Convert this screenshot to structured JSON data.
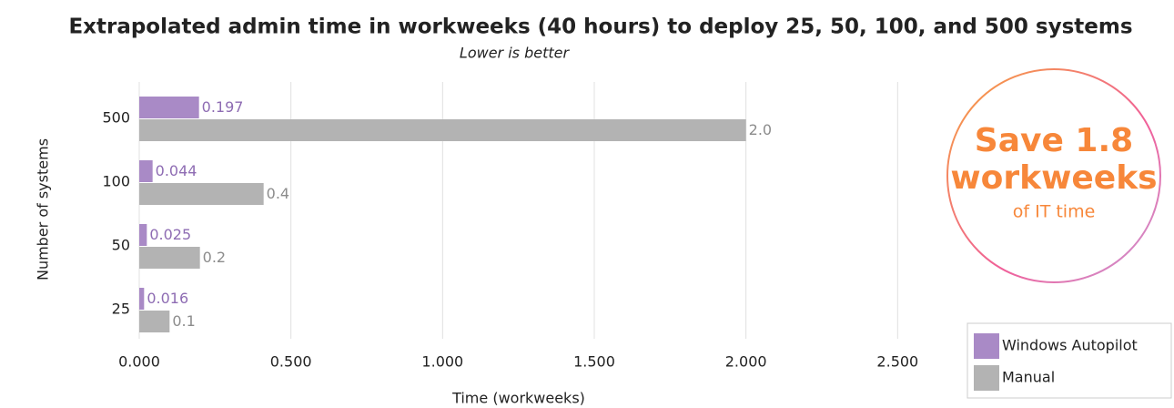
{
  "chart_data": {
    "type": "barh",
    "title": "Extrapolated admin time in workweeks (40 hours) to deploy 25, 50, 100, and 500 systems",
    "subtitle": "Lower is better",
    "xlabel": "Time (workweeks)",
    "ylabel": "Number of systems",
    "categories": [
      "500",
      "100",
      "50",
      "25"
    ],
    "series": [
      {
        "name": "Windows Autopilot",
        "color": "#a98ac6",
        "label_color": "#8e6cb3",
        "values": [
          0.197,
          0.044,
          0.025,
          0.016
        ]
      },
      {
        "name": "Manual",
        "color": "#b3b3b3",
        "label_color": "#8c8c8c",
        "values": [
          2.0,
          0.41,
          0.2,
          0.1
        ],
        "value_labels": [
          "2.0",
          "0.4",
          "0.2",
          "0.1"
        ]
      }
    ],
    "xlim": [
      0,
      3
    ],
    "xticks": [
      {
        "value": 0,
        "label": "0.000"
      },
      {
        "value": 0.5,
        "label": "0.500"
      },
      {
        "value": 1,
        "label": "1.000"
      },
      {
        "value": 1.5,
        "label": "1.500"
      },
      {
        "value": 2,
        "label": "2.000"
      },
      {
        "value": 2.5,
        "label": "2.500"
      }
    ],
    "grid": true,
    "legend": "lower right",
    "annotation": {
      "headline": "Save 1.8",
      "unit": "workweeks",
      "note": "of IT time"
    }
  }
}
